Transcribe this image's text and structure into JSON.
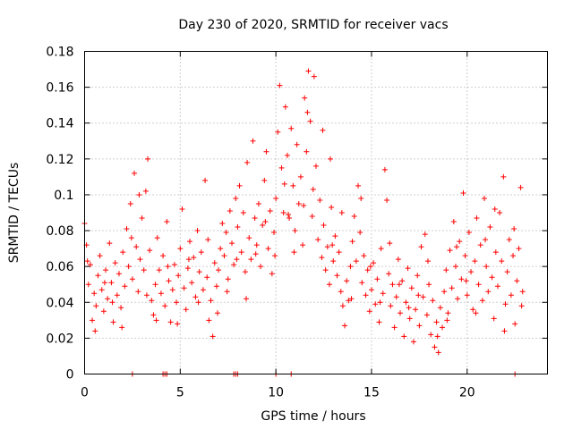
{
  "chart_data": {
    "type": "scatter",
    "title": "Day 230 of 2020, SRMTID for receiver vacs",
    "xlabel": "GPS time / hours",
    "ylabel": "SRMTID / TECUs",
    "xlim": [
      0,
      24.2
    ],
    "ylim": [
      0,
      0.18
    ],
    "x_ticks": [
      0,
      5,
      10,
      15,
      20
    ],
    "x_tick_labels": [
      "0",
      "5",
      "10",
      "15",
      "20"
    ],
    "y_ticks": [
      0,
      0.02,
      0.04,
      0.06,
      0.08,
      0.1,
      0.12,
      0.14,
      0.16,
      0.18
    ],
    "y_tick_labels": [
      "0",
      "0.02",
      "0.04",
      "0.06",
      "0.08",
      "0.1",
      "0.12",
      "0.14",
      "0.16",
      "0.18"
    ],
    "grid": true,
    "marker": "+",
    "point_color": "#ff0000",
    "series": [
      {
        "name": "vacs",
        "points": [
          [
            0.0,
            0.084
          ],
          [
            0.1,
            0.072
          ],
          [
            0.2,
            0.05
          ],
          [
            0.3,
            0.061
          ],
          [
            0.4,
            0.03
          ],
          [
            0.5,
            0.045
          ],
          [
            0.6,
            0.038
          ],
          [
            0.7,
            0.055
          ],
          [
            0.8,
            0.066
          ],
          [
            0.9,
            0.047
          ],
          [
            1.0,
            0.035
          ],
          [
            1.1,
            0.058
          ],
          [
            1.2,
            0.042
          ],
          [
            1.3,
            0.073
          ],
          [
            1.4,
            0.051
          ],
          [
            1.5,
            0.029
          ],
          [
            1.6,
            0.062
          ],
          [
            1.7,
            0.044
          ],
          [
            1.8,
            0.056
          ],
          [
            1.9,
            0.037
          ],
          [
            2.0,
            0.068
          ],
          [
            2.1,
            0.049
          ],
          [
            2.2,
            0.081
          ],
          [
            2.3,
            0.06
          ],
          [
            2.4,
            0.095
          ],
          [
            2.5,
            0.053
          ],
          [
            2.6,
            0.112
          ],
          [
            2.7,
            0.071
          ],
          [
            2.8,
            0.046
          ],
          [
            2.9,
            0.064
          ],
          [
            3.0,
            0.087
          ],
          [
            3.1,
            0.058
          ],
          [
            3.2,
            0.102
          ],
          [
            3.3,
            0.12
          ],
          [
            3.4,
            0.069
          ],
          [
            3.5,
            0.041
          ],
          [
            3.6,
            0.033
          ],
          [
            3.7,
            0.05
          ],
          [
            3.8,
            0.076
          ],
          [
            3.9,
            0.058
          ],
          [
            4.0,
            0.045
          ],
          [
            4.1,
            0.066
          ],
          [
            4.2,
            0.038
          ],
          [
            4.3,
            0.085
          ],
          [
            4.4,
            0.052
          ],
          [
            4.5,
            0.029
          ],
          [
            4.6,
            0.047
          ],
          [
            4.7,
            0.061
          ],
          [
            4.8,
            0.04
          ],
          [
            4.9,
            0.055
          ],
          [
            5.0,
            0.07
          ],
          [
            5.1,
            0.092
          ],
          [
            5.2,
            0.048
          ],
          [
            5.3,
            0.036
          ],
          [
            5.4,
            0.059
          ],
          [
            5.5,
            0.074
          ],
          [
            5.6,
            0.051
          ],
          [
            5.7,
            0.065
          ],
          [
            5.8,
            0.043
          ],
          [
            5.9,
            0.08
          ],
          [
            6.0,
            0.057
          ],
          [
            6.1,
            0.068
          ],
          [
            6.2,
            0.047
          ],
          [
            6.3,
            0.108
          ],
          [
            6.4,
            0.054
          ],
          [
            6.5,
            0.03
          ],
          [
            6.6,
            0.041
          ],
          [
            6.7,
            0.021
          ],
          [
            6.8,
            0.062
          ],
          [
            6.9,
            0.049
          ],
          [
            7.0,
            0.058
          ],
          [
            7.1,
            0.07
          ],
          [
            7.2,
            0.084
          ],
          [
            7.3,
            0.066
          ],
          [
            7.4,
            0.079
          ],
          [
            7.5,
            0.053
          ],
          [
            7.6,
            0.091
          ],
          [
            7.7,
            0.073
          ],
          [
            7.8,
            0.061
          ],
          [
            7.9,
            0.098
          ],
          [
            8.0,
            0.082
          ],
          [
            8.1,
            0.105
          ],
          [
            8.2,
            0.068
          ],
          [
            8.3,
            0.09
          ],
          [
            8.4,
            0.057
          ],
          [
            8.5,
            0.118
          ],
          [
            8.6,
            0.076
          ],
          [
            8.7,
            0.064
          ],
          [
            8.8,
            0.13
          ],
          [
            8.9,
            0.087
          ],
          [
            9.0,
            0.072
          ],
          [
            9.1,
            0.095
          ],
          [
            9.2,
            0.06
          ],
          [
            9.3,
            0.083
          ],
          [
            9.4,
            0.108
          ],
          [
            9.5,
            0.124
          ],
          [
            9.6,
            0.07
          ],
          [
            9.7,
            0.091
          ],
          [
            9.8,
            0.056
          ],
          [
            9.9,
            0.079
          ],
          [
            10.0,
            0.098
          ],
          [
            10.1,
            0.135
          ],
          [
            10.2,
            0.161
          ],
          [
            10.3,
            0.115
          ],
          [
            10.4,
            0.09
          ],
          [
            10.5,
            0.149
          ],
          [
            10.6,
            0.122
          ],
          [
            10.7,
            0.087
          ],
          [
            10.8,
            0.137
          ],
          [
            10.9,
            0.105
          ],
          [
            11.0,
            0.08
          ],
          [
            11.1,
            0.128
          ],
          [
            11.2,
            0.095
          ],
          [
            11.3,
            0.11
          ],
          [
            11.4,
            0.072
          ],
          [
            11.5,
            0.154
          ],
          [
            11.6,
            0.124
          ],
          [
            11.7,
            0.169
          ],
          [
            11.8,
            0.141
          ],
          [
            11.9,
            0.088
          ],
          [
            12.0,
            0.166
          ],
          [
            12.1,
            0.116
          ],
          [
            12.2,
            0.075
          ],
          [
            12.3,
            0.097
          ],
          [
            12.4,
            0.065
          ],
          [
            12.5,
            0.083
          ],
          [
            12.6,
            0.058
          ],
          [
            12.7,
            0.071
          ],
          [
            12.8,
            0.05
          ],
          [
            12.9,
            0.093
          ],
          [
            13.0,
            0.063
          ],
          [
            13.1,
            0.077
          ],
          [
            13.2,
            0.055
          ],
          [
            13.3,
            0.068
          ],
          [
            13.4,
            0.046
          ],
          [
            13.5,
            0.038
          ],
          [
            13.6,
            0.027
          ],
          [
            13.7,
            0.052
          ],
          [
            13.8,
            0.041
          ],
          [
            13.9,
            0.06
          ],
          [
            14.0,
            0.074
          ],
          [
            14.1,
            0.088
          ],
          [
            14.2,
            0.063
          ],
          [
            14.3,
            0.105
          ],
          [
            14.4,
            0.079
          ],
          [
            14.5,
            0.051
          ],
          [
            14.6,
            0.066
          ],
          [
            14.7,
            0.044
          ],
          [
            14.8,
            0.058
          ],
          [
            14.9,
            0.035
          ],
          [
            15.0,
            0.047
          ],
          [
            15.1,
            0.062
          ],
          [
            15.2,
            0.039
          ],
          [
            15.3,
            0.053
          ],
          [
            15.4,
            0.029
          ],
          [
            15.5,
            0.07
          ],
          [
            15.6,
            0.045
          ],
          [
            15.7,
            0.114
          ],
          [
            15.8,
            0.097
          ],
          [
            15.9,
            0.056
          ],
          [
            16.0,
            0.038
          ],
          [
            16.1,
            0.05
          ],
          [
            16.2,
            0.026
          ],
          [
            16.3,
            0.043
          ],
          [
            16.4,
            0.064
          ],
          [
            16.5,
            0.034
          ],
          [
            16.6,
            0.052
          ],
          [
            16.7,
            0.021
          ],
          [
            16.8,
            0.04
          ],
          [
            16.9,
            0.059
          ],
          [
            17.0,
            0.031
          ],
          [
            17.1,
            0.048
          ],
          [
            17.2,
            0.018
          ],
          [
            17.3,
            0.036
          ],
          [
            17.4,
            0.055
          ],
          [
            17.5,
            0.027
          ],
          [
            17.6,
            0.071
          ],
          [
            17.7,
            0.043
          ],
          [
            17.8,
            0.078
          ],
          [
            17.9,
            0.033
          ],
          [
            18.0,
            0.05
          ],
          [
            18.1,
            0.022
          ],
          [
            18.2,
            0.041
          ],
          [
            18.3,
            0.015
          ],
          [
            18.4,
            0.029
          ],
          [
            18.5,
            0.012
          ],
          [
            18.6,
            0.037
          ],
          [
            18.7,
            0.026
          ],
          [
            18.8,
            0.046
          ],
          [
            18.9,
            0.058
          ],
          [
            19.0,
            0.034
          ],
          [
            19.1,
            0.069
          ],
          [
            19.2,
            0.048
          ],
          [
            19.3,
            0.085
          ],
          [
            19.4,
            0.06
          ],
          [
            19.5,
            0.042
          ],
          [
            19.6,
            0.074
          ],
          [
            19.7,
            0.053
          ],
          [
            19.8,
            0.101
          ],
          [
            19.9,
            0.066
          ],
          [
            20.0,
            0.044
          ],
          [
            20.1,
            0.079
          ],
          [
            20.2,
            0.057
          ],
          [
            20.3,
            0.036
          ],
          [
            20.4,
            0.063
          ],
          [
            20.5,
            0.087
          ],
          [
            20.6,
            0.05
          ],
          [
            20.7,
            0.072
          ],
          [
            20.8,
            0.041
          ],
          [
            20.9,
            0.098
          ],
          [
            21.0,
            0.06
          ],
          [
            21.1,
            0.046
          ],
          [
            21.2,
            0.082
          ],
          [
            21.3,
            0.054
          ],
          [
            21.4,
            0.031
          ],
          [
            21.5,
            0.068
          ],
          [
            21.6,
            0.049
          ],
          [
            21.7,
            0.09
          ],
          [
            21.8,
            0.063
          ],
          [
            21.9,
            0.11
          ],
          [
            22.0,
            0.039
          ],
          [
            22.1,
            0.057
          ],
          [
            22.2,
            0.075
          ],
          [
            22.3,
            0.044
          ],
          [
            22.4,
            0.066
          ],
          [
            22.5,
            0.028
          ],
          [
            22.6,
            0.052
          ],
          [
            22.7,
            0.07
          ],
          [
            22.8,
            0.104
          ],
          [
            22.9,
            0.046
          ],
          [
            0.15,
            0.063
          ],
          [
            0.55,
            0.024
          ],
          [
            1.05,
            0.051
          ],
          [
            1.45,
            0.04
          ],
          [
            1.95,
            0.026
          ],
          [
            2.45,
            0.076
          ],
          [
            2.85,
            0.1
          ],
          [
            3.25,
            0.044
          ],
          [
            3.75,
            0.03
          ],
          [
            4.35,
            0.06
          ],
          [
            4.85,
            0.028
          ],
          [
            5.45,
            0.064
          ],
          [
            5.95,
            0.04
          ],
          [
            6.45,
            0.075
          ],
          [
            6.95,
            0.034
          ],
          [
            7.45,
            0.046
          ],
          [
            7.95,
            0.064
          ],
          [
            8.45,
            0.042
          ],
          [
            8.95,
            0.067
          ],
          [
            9.45,
            0.085
          ],
          [
            9.95,
            0.066
          ],
          [
            10.45,
            0.106
          ],
          [
            10.95,
            0.068
          ],
          [
            11.45,
            0.094
          ],
          [
            11.95,
            0.103
          ],
          [
            12.45,
            0.136
          ],
          [
            12.95,
            0.072
          ],
          [
            13.45,
            0.09
          ],
          [
            13.95,
            0.042
          ],
          [
            14.45,
            0.098
          ],
          [
            14.95,
            0.06
          ],
          [
            15.45,
            0.04
          ],
          [
            15.95,
            0.073
          ],
          [
            16.45,
            0.05
          ],
          [
            16.95,
            0.037
          ],
          [
            17.45,
            0.044
          ],
          [
            17.95,
            0.063
          ],
          [
            18.45,
            0.021
          ],
          [
            18.95,
            0.03
          ],
          [
            19.45,
            0.071
          ],
          [
            19.95,
            0.052
          ],
          [
            20.45,
            0.034
          ],
          [
            20.95,
            0.075
          ],
          [
            21.45,
            0.092
          ],
          [
            21.95,
            0.024
          ],
          [
            22.45,
            0.081
          ],
          [
            22.85,
            0.038
          ],
          [
            12.85,
            0.12
          ],
          [
            11.65,
            0.146
          ],
          [
            10.65,
            0.089
          ],
          [
            2.5,
            0.0
          ],
          [
            4.1,
            0.0
          ],
          [
            4.2,
            0.0
          ],
          [
            4.3,
            0.0
          ],
          [
            7.8,
            0.0
          ],
          [
            7.9,
            0.0
          ],
          [
            8.0,
            0.0
          ],
          [
            10.0,
            0.0
          ],
          [
            10.8,
            0.0
          ],
          [
            22.5,
            0.0
          ]
        ]
      }
    ]
  }
}
